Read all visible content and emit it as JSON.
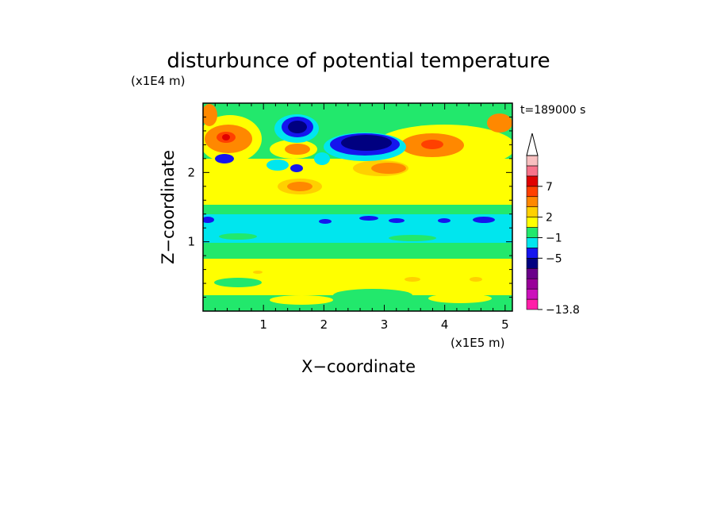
{
  "chart_data": {
    "type": "heatmap",
    "title": "disturbunce of potential temperature",
    "xlabel": "X−coordinate",
    "ylabel": "Z−coordinate",
    "x_unit": "(x1E5 m)",
    "y_unit": "(x1E4 m)",
    "time_label": "t=189000 s",
    "xlim": [
      0,
      5.12
    ],
    "ylim": [
      0,
      3.0
    ],
    "x_ticks": [
      1,
      2,
      3,
      4,
      5
    ],
    "y_ticks": [
      1,
      2
    ],
    "colorbar": {
      "levels": [
        -13.8,
        -5,
        -1,
        2,
        7
      ],
      "level_labels": [
        "−13.8",
        "−5",
        "−1",
        "2",
        "7"
      ],
      "colors": [
        "#ff1fa8",
        "#cc11bb",
        "#990099",
        "#6a008a",
        "#000080",
        "#1515ee",
        "#00e6ee",
        "#22e86c",
        "#ffff00",
        "#ffd000",
        "#ff8800",
        "#ff4000",
        "#e00000",
        "#f7738a",
        "#f8c0c0"
      ]
    },
    "field_features": [
      {
        "x": 0.35,
        "z": 2.5,
        "level": 5
      },
      {
        "x": 1.5,
        "z": 2.7,
        "level": -7
      },
      {
        "x": 2.65,
        "z": 2.4,
        "level": -8
      },
      {
        "x": 3.75,
        "z": 2.4,
        "level": 4
      },
      {
        "x": 1.6,
        "z": 1.8,
        "level": 3
      },
      {
        "x": 2.5,
        "z": 1.3,
        "level": -1
      },
      {
        "x": 2.5,
        "z": 0.5,
        "level": 1
      }
    ]
  }
}
